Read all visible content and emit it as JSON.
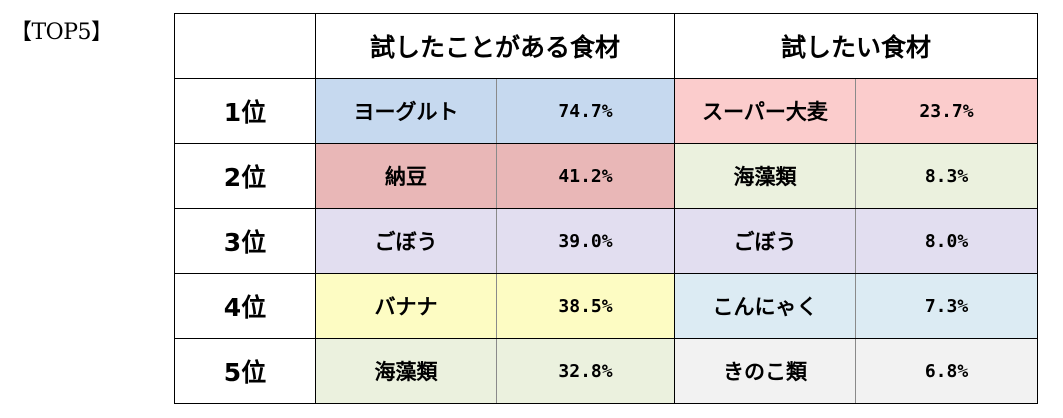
{
  "corner_label": "【TOP5】",
  "headers": {
    "tried": "試したことがある食材",
    "want": "試したい食材"
  },
  "rows": [
    {
      "rank": "1位",
      "tried_food": "ヨーグルト",
      "tried_pct": "74.7%",
      "want_food": "スーパー大麦",
      "want_pct": "23.7%",
      "tried_color": "#c6d9ef",
      "want_color": "#fbcccc"
    },
    {
      "rank": "2位",
      "tried_food": "納豆",
      "tried_pct": "41.2%",
      "want_food": "海藻類",
      "want_pct": "8.3%",
      "tried_color": "#e9b7b7",
      "want_color": "#ebf1de"
    },
    {
      "rank": "3位",
      "tried_food": "ごぼう",
      "tried_pct": "39.0%",
      "want_food": "ごぼう",
      "want_pct": "8.0%",
      "tried_color": "#e2def0",
      "want_color": "#e2def0"
    },
    {
      "rank": "4位",
      "tried_food": "バナナ",
      "tried_pct": "38.5%",
      "want_food": "こんにゃく",
      "want_pct": "7.3%",
      "tried_color": "#fdfcc3",
      "want_color": "#dcebf3"
    },
    {
      "rank": "5位",
      "tried_food": "海藻類",
      "tried_pct": "32.8%",
      "want_food": "きのこ類",
      "want_pct": "6.8%",
      "tried_color": "#ebf1de",
      "want_color": "#f2f2f2"
    }
  ]
}
